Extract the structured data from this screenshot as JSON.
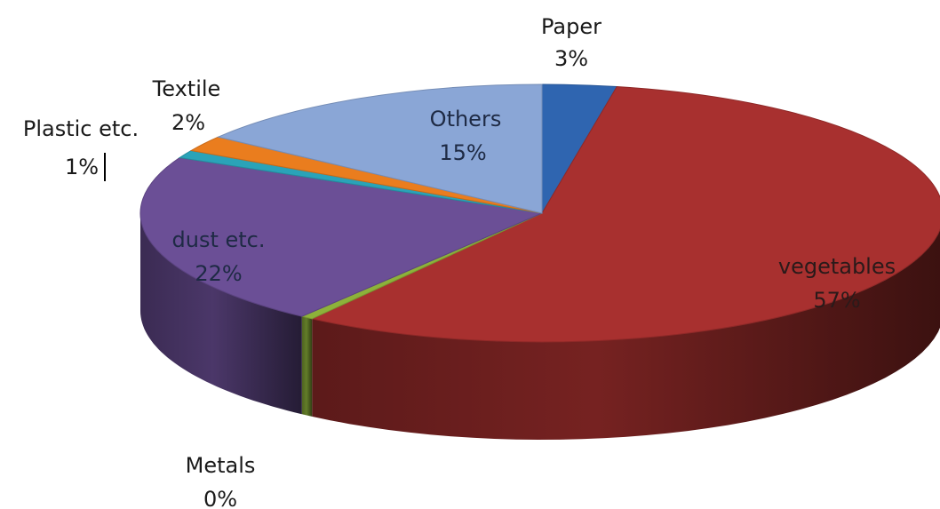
{
  "chart_data": {
    "type": "pie",
    "three_d": true,
    "title": "",
    "slices": [
      {
        "name": "Paper",
        "value": 3,
        "label": "3%",
        "color": "#2f65b0"
      },
      {
        "name": "vegetables",
        "value": 57,
        "label": "57%",
        "color": "#a8302f"
      },
      {
        "name": "Metals",
        "value": 0.5,
        "label": "0%",
        "color": "#8db23a"
      },
      {
        "name": "dust etc.",
        "value": 22,
        "label": "22%",
        "color": "#6b4f96"
      },
      {
        "name": "Plastic etc.",
        "value": 1,
        "label": "1%",
        "color": "#2aa3b8"
      },
      {
        "name": "Textile",
        "value": 2,
        "label": "2%",
        "color": "#ea7d1e"
      },
      {
        "name": "Others",
        "value": 15,
        "label": "15%",
        "color": "#8aa6d6"
      }
    ],
    "legend": "none"
  }
}
